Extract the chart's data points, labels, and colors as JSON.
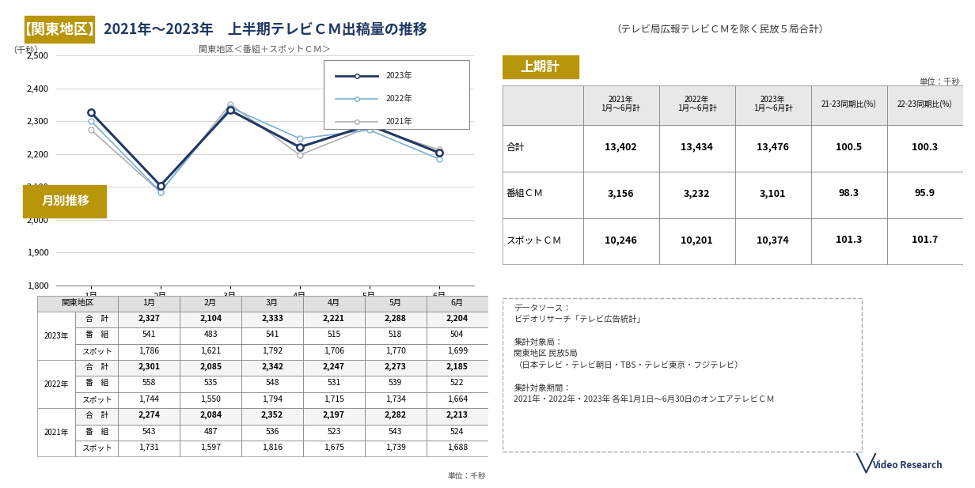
{
  "title_bracket": "【関東地区】",
  "title_main": "2021年～2023年　上半期テレビＣＭ出稿量の推移",
  "title_sub": "（テレビ局広報テレビＣＭを除く民放５局合計）",
  "chart_subtitle": "関東地区＜番組＋スポットＣＭ＞",
  "ylabel": "（千秒）",
  "ylim_min": 1800,
  "ylim_max": 2500,
  "yticks": [
    1800,
    1900,
    2000,
    2100,
    2200,
    2300,
    2400,
    2500
  ],
  "months": [
    "1月",
    "2月",
    "3月",
    "4月",
    "5月",
    "6月"
  ],
  "series_2023": [
    2327,
    2104,
    2333,
    2221,
    2288,
    2204
  ],
  "series_2022": [
    2301,
    2085,
    2342,
    2247,
    2273,
    2185
  ],
  "series_2021": [
    2274,
    2084,
    2352,
    2197,
    2282,
    2213
  ],
  "color_2023": "#1f3864",
  "color_2022": "#7ab0d4",
  "color_2021": "#b0b0b0",
  "legend_2023": "2023年",
  "legend_2022": "2022年",
  "legend_2021": "2021年",
  "table_months": [
    "1月",
    "2月",
    "3月",
    "4月",
    "5月",
    "6月"
  ],
  "table_data": {
    "2023年": {
      "合　計": [
        2327,
        2104,
        2333,
        2221,
        2288,
        2204
      ],
      "番　組": [
        541,
        483,
        541,
        515,
        518,
        504
      ],
      "スポット": [
        1786,
        1621,
        1792,
        1706,
        1770,
        1699
      ]
    },
    "2022年": {
      "合　計": [
        2301,
        2085,
        2342,
        2247,
        2273,
        2185
      ],
      "番　組": [
        558,
        535,
        548,
        531,
        539,
        522
      ],
      "スポット": [
        1744,
        1550,
        1794,
        1715,
        1734,
        1664
      ]
    },
    "2021年": {
      "合　計": [
        2274,
        2084,
        2352,
        2197,
        2282,
        2213
      ],
      "番　組": [
        543,
        487,
        536,
        523,
        543,
        524
      ],
      "スポット": [
        1731,
        1597,
        1816,
        1675,
        1739,
        1688
      ]
    }
  },
  "right_title": "上期計",
  "right_unit": "単位：千秒",
  "right_col_headers_line1": [
    "",
    "2021年",
    "2022年",
    "2023年",
    "21-23同期比(%)",
    "22-23同期比(%)"
  ],
  "right_col_headers_line2": [
    "",
    "1月～6月計",
    "1月～6月計",
    "1月～6月計",
    "",
    ""
  ],
  "right_row_headers": [
    "合計",
    "番組ＣＭ",
    "スポットＣＭ"
  ],
  "right_data": [
    [
      13402,
      13434,
      13476,
      100.5,
      100.3
    ],
    [
      3156,
      3232,
      3101,
      98.3,
      95.9
    ],
    [
      10246,
      10201,
      10374,
      101.3,
      101.7
    ]
  ],
  "note_text_lines": [
    "データソース：",
    "ビデオリサーチ「テレビ広告統計」",
    "",
    "集計対象局：",
    "関東地区 民放5局",
    "（日本テレビ・テレビ朝日・TBS・テレビ東京・フジテレビ）",
    "",
    "集計対象期間：",
    "2021年・2022年・2023年 各年1月1日～6月30日のオンエアテレビＣＭ"
  ],
  "golden_color": "#b8960c",
  "dark_navy": "#1f3864",
  "border_color": "#999999",
  "header_bg": "#e0e0e0",
  "alt_row_bg": "#f5f5f5"
}
